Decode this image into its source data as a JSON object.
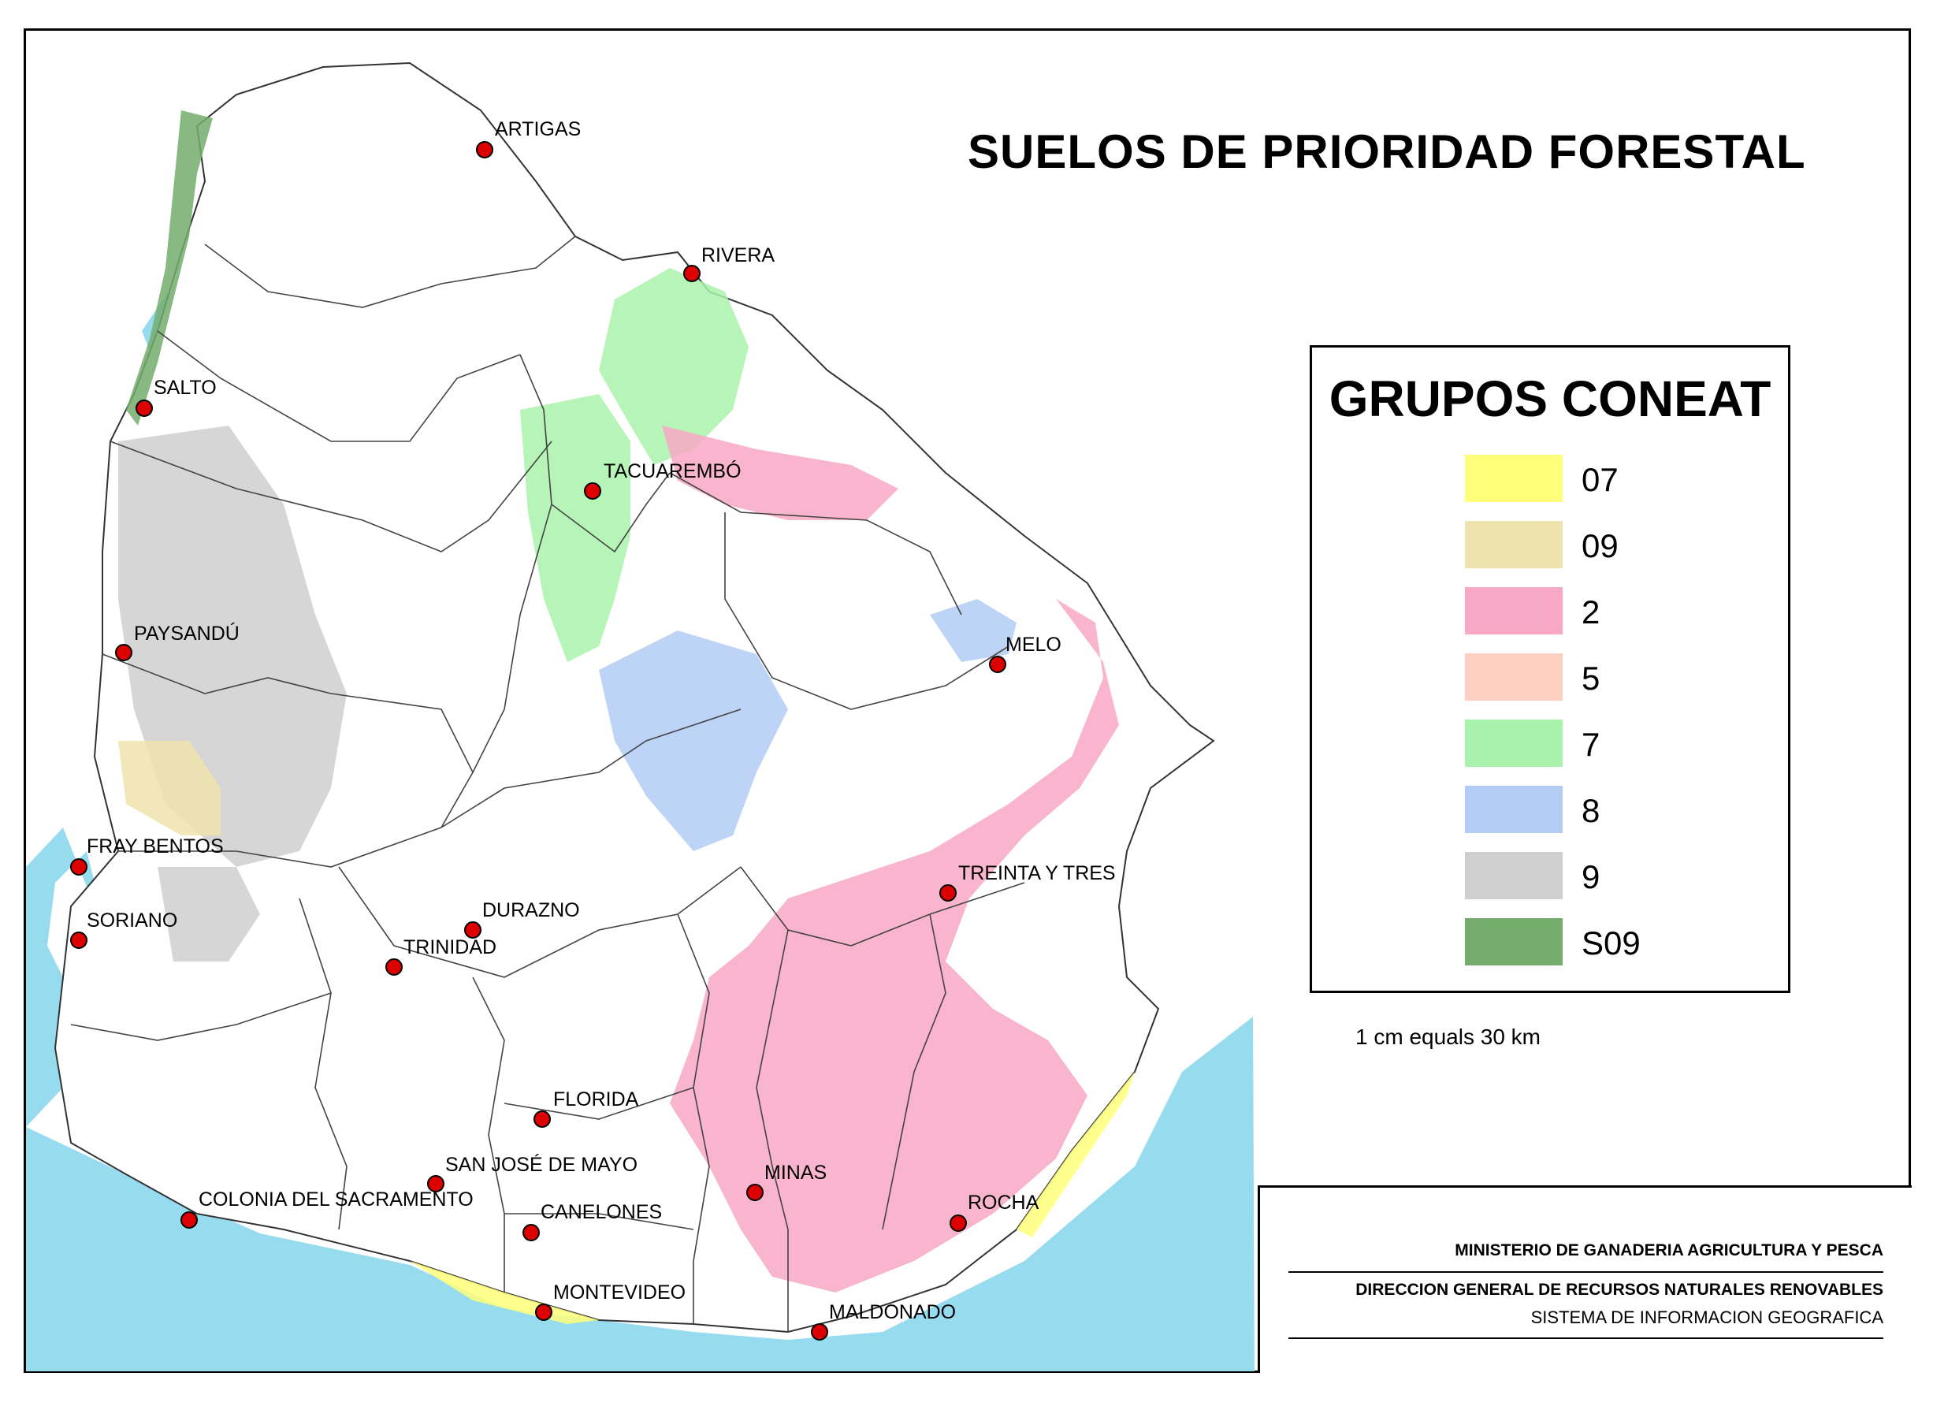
{
  "map": {
    "title": "SUELOS DE PRIORIDAD FORESTAL",
    "scale_text": "1 cm equals 30 km",
    "water_color": "#97dbef",
    "boundary_color": "#444444",
    "city_marker_color": "#dd0000",
    "cities": [
      {
        "id": "artigas",
        "label": "ARTIGAS"
      },
      {
        "id": "rivera",
        "label": "RIVERA"
      },
      {
        "id": "salto",
        "label": "SALTO"
      },
      {
        "id": "tacuarembo",
        "label": "TACUAREMBÓ"
      },
      {
        "id": "paysandu",
        "label": "PAYSANDÚ"
      },
      {
        "id": "melo",
        "label": "MELO"
      },
      {
        "id": "fray-bentos",
        "label": "FRAY BENTOS"
      },
      {
        "id": "treinta-y-tres",
        "label": "TREINTA Y TRES"
      },
      {
        "id": "soriano",
        "label": "SORIANO"
      },
      {
        "id": "durazno",
        "label": "DURAZNO"
      },
      {
        "id": "trinidad",
        "label": "TRINIDAD"
      },
      {
        "id": "florida",
        "label": "FLORIDA"
      },
      {
        "id": "san-jose-de-mayo",
        "label": "SAN JOSÉ DE MAYO"
      },
      {
        "id": "minas",
        "label": "MINAS"
      },
      {
        "id": "colonia",
        "label": "COLONIA DEL SACRAMENTO"
      },
      {
        "id": "canelones",
        "label": "CANELONES"
      },
      {
        "id": "rocha",
        "label": "ROCHA"
      },
      {
        "id": "montevideo",
        "label": "MONTEVIDEO"
      },
      {
        "id": "maldonado",
        "label": "MALDONADO"
      }
    ]
  },
  "legend": {
    "title": "GRUPOS CONEAT",
    "items": [
      {
        "label": "07",
        "color": "#ffff7a"
      },
      {
        "label": "09",
        "color": "#efe3ad"
      },
      {
        "label": "2",
        "color": "#f8a8c4"
      },
      {
        "label": "5",
        "color": "#fccfc0"
      },
      {
        "label": "7",
        "color": "#a9f2ab"
      },
      {
        "label": "8",
        "color": "#b3ccf5"
      },
      {
        "label": "9",
        "color": "#cfcfcf"
      },
      {
        "label": "S09",
        "color": "#74ad6c"
      }
    ]
  },
  "credits": {
    "line1": "MINISTERIO DE GANADERIA AGRICULTURA Y PESCA",
    "line2": "DIRECCION GENERAL DE RECURSOS NATURALES RENOVABLES",
    "line3": "SISTEMA DE INFORMACION GEOGRAFICA"
  }
}
